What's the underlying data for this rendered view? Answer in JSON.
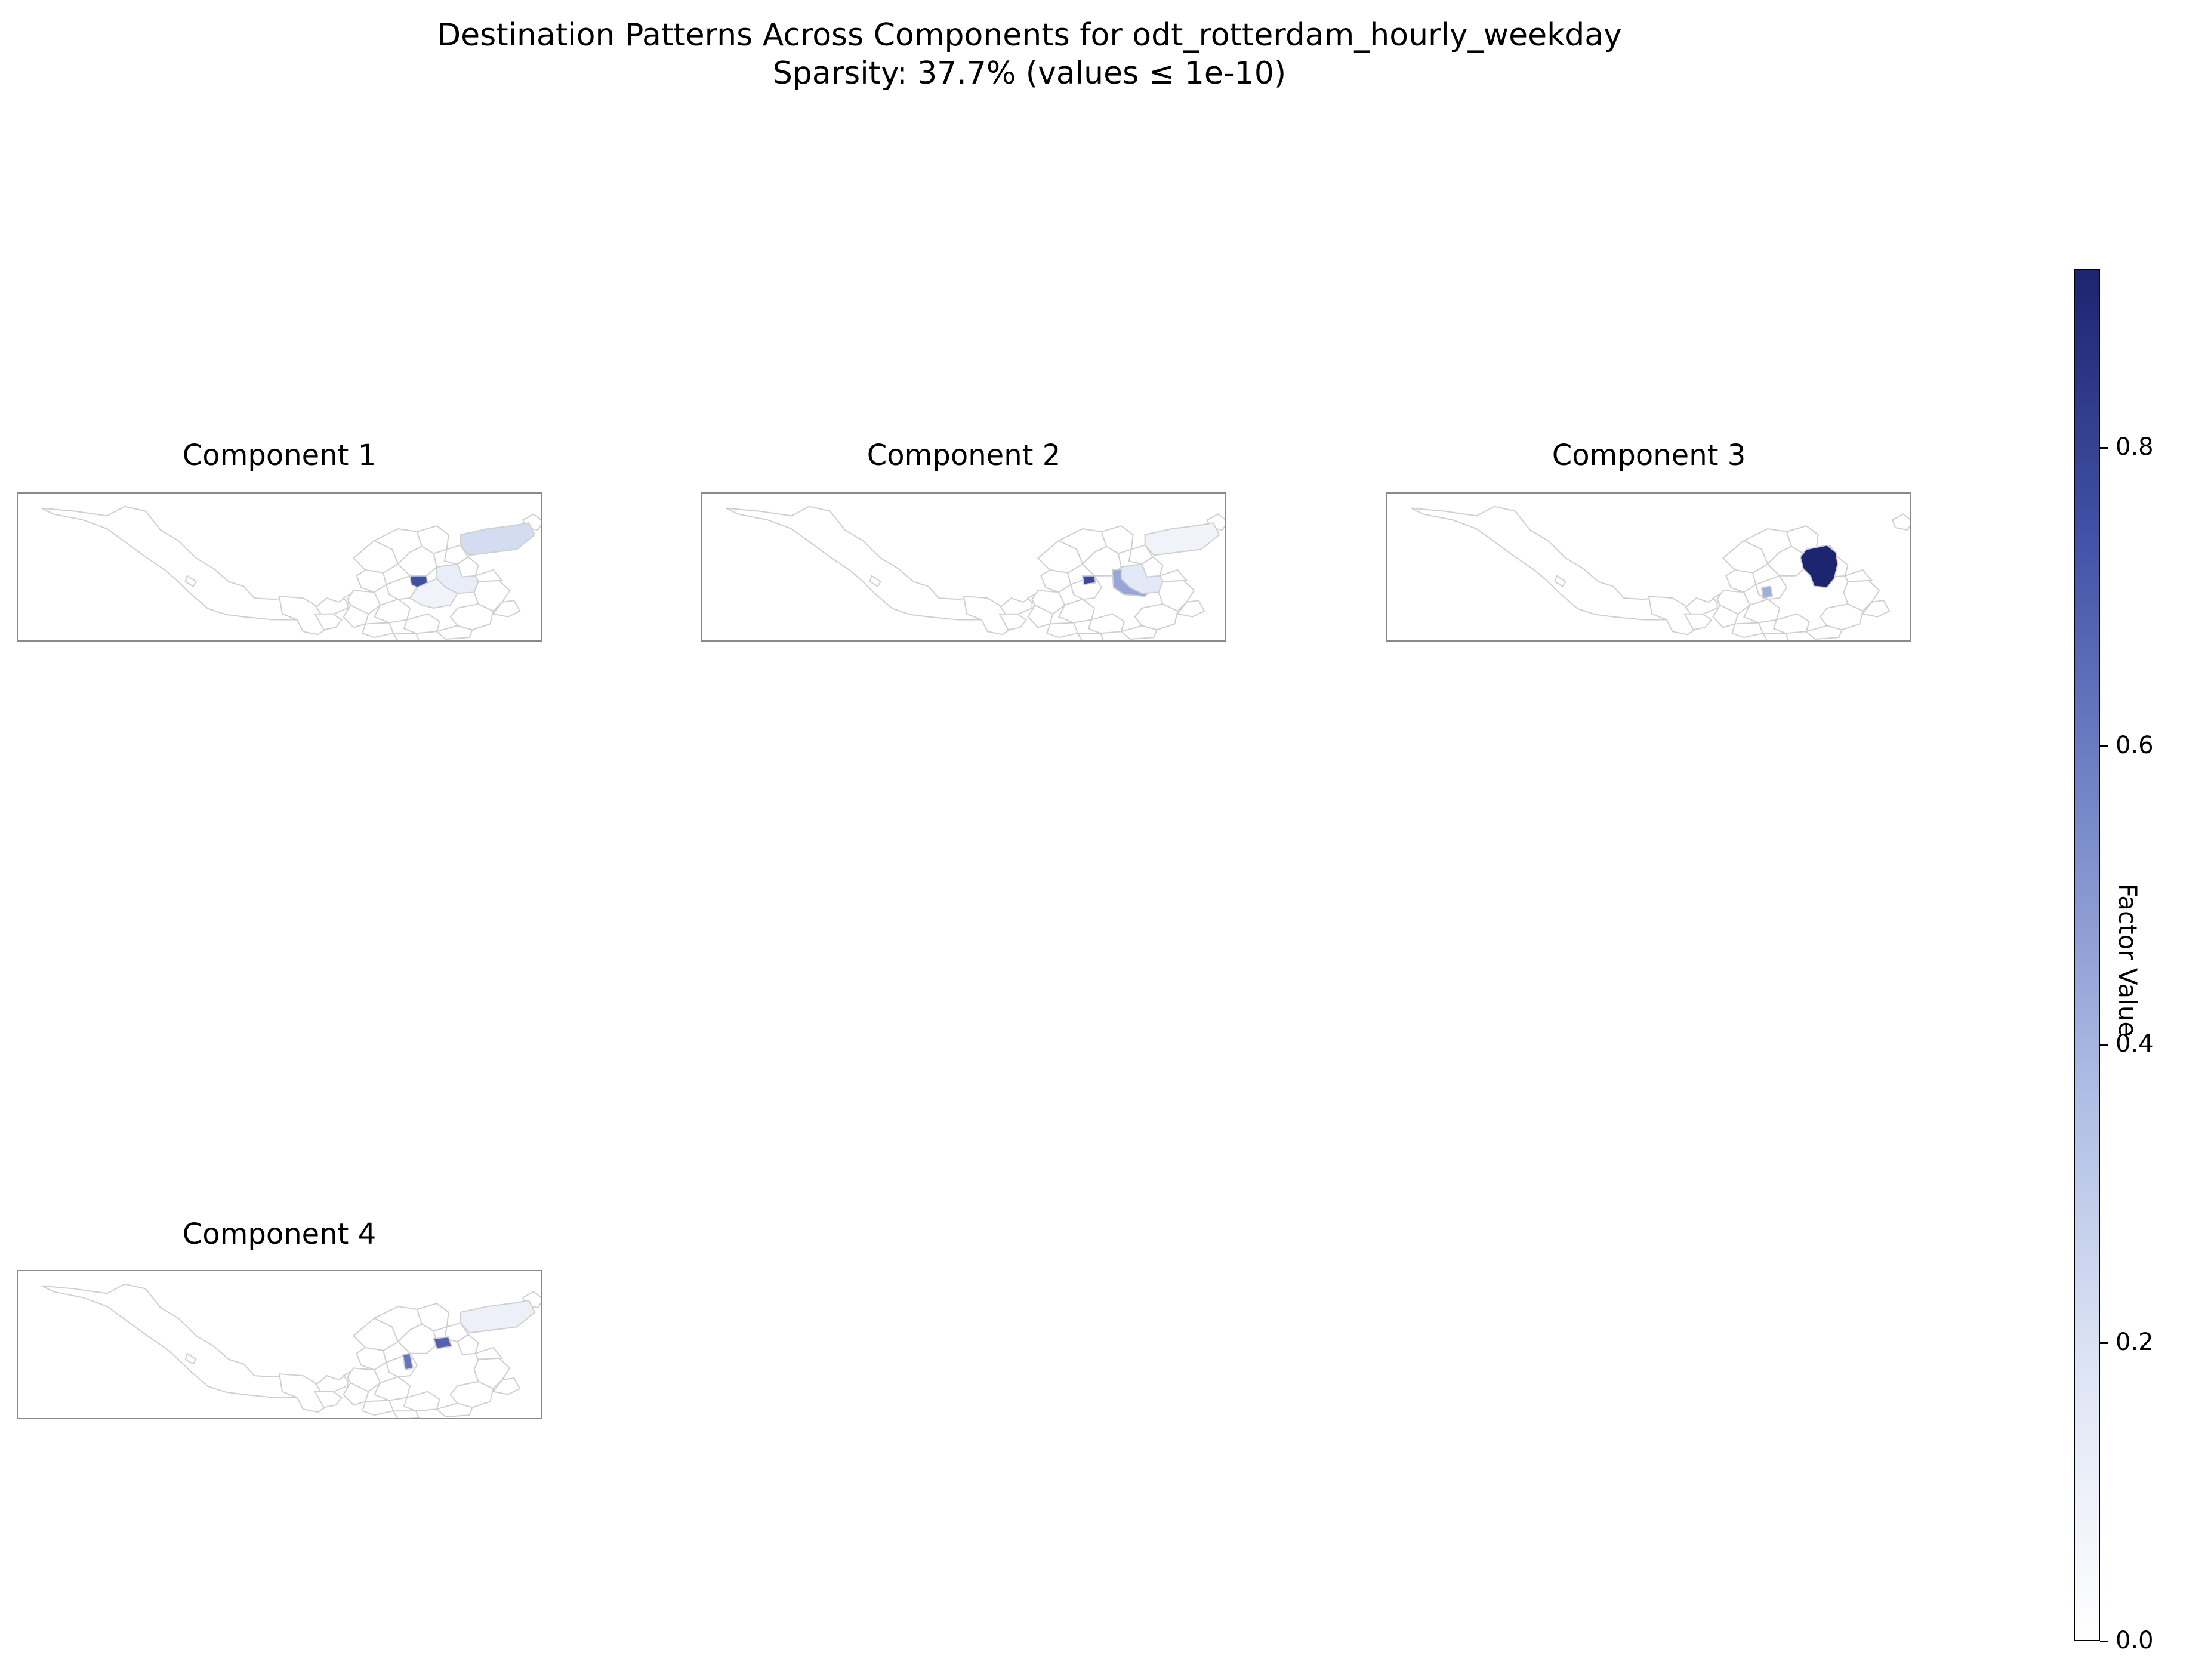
{
  "figure": {
    "title_line1": "Destination Patterns Across Components for odt_rotterdam_hourly_weekday",
    "title_line2": "Sparsity: 37.7% (values ≤ 1e-10)"
  },
  "panels": [
    {
      "title": "Component 1",
      "highlights": [
        {
          "zone": "z_center",
          "value": 0.75
        },
        {
          "zone": "z_northeast",
          "value": 0.22
        },
        {
          "zone": "z_east",
          "value": 0.12
        },
        {
          "zone": "z_southeast",
          "value": 0.08
        }
      ]
    },
    {
      "title": "Component 2",
      "highlights": [
        {
          "zone": "z_center_small",
          "value": 0.78
        },
        {
          "zone": "z_east_mid",
          "value": 0.45
        },
        {
          "zone": "z_northeast",
          "value": 0.08
        },
        {
          "zone": "z_east",
          "value": 0.15
        }
      ]
    },
    {
      "title": "Component 3",
      "highlights": [
        {
          "zone": "z_bigeast",
          "value": 0.92
        },
        {
          "zone": "z_small_south",
          "value": 0.42
        }
      ]
    },
    {
      "title": "Component 4",
      "highlights": [
        {
          "zone": "z_small_east",
          "value": 0.68
        },
        {
          "zone": "z_small_west",
          "value": 0.62
        },
        {
          "zone": "z_northeast",
          "value": 0.1
        }
      ]
    }
  ],
  "colorbar": {
    "label": "Factor Value",
    "min": 0.0,
    "max": 0.92,
    "ticks": [
      "0.0",
      "0.2",
      "0.4",
      "0.6",
      "0.8"
    ],
    "tick_values": [
      0.0,
      0.2,
      0.4,
      0.6,
      0.8
    ],
    "colors": [
      "#ffffff",
      "#dde4f4",
      "#aebde4",
      "#7889c9",
      "#4353a8",
      "#1d2470"
    ]
  },
  "map_colors": {
    "edge": "#cfcfcf",
    "empty_fill": "#ffffff"
  }
}
